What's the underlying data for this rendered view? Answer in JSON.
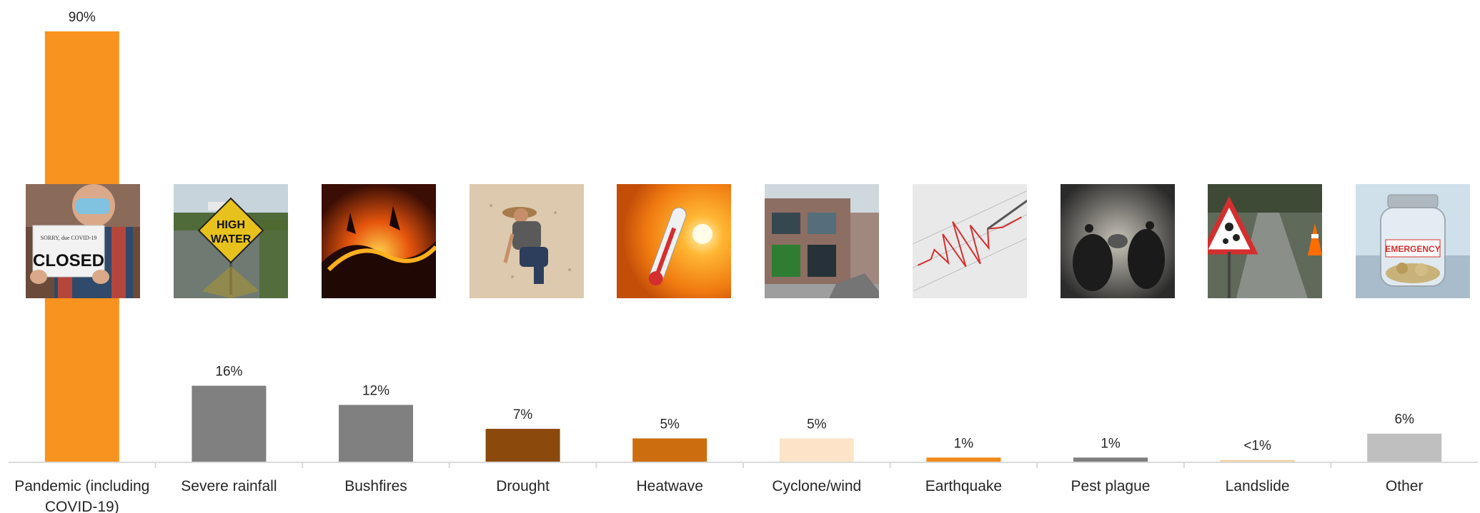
{
  "chart_data": {
    "type": "bar",
    "categories": [
      "Pandemic (including COVID-19)",
      "Severe rainfall",
      "Bushfires",
      "Drought",
      "Heatwave",
      "Cyclone/wind",
      "Earthquake",
      "Pest plague",
      "Landslide",
      "Other"
    ],
    "category_lines": [
      [
        "Pandemic (including",
        "COVID-19)"
      ],
      [
        "Severe rainfall"
      ],
      [
        "Bushfires"
      ],
      [
        "Drought"
      ],
      [
        "Heatwave"
      ],
      [
        "Cyclone/wind"
      ],
      [
        "Earthquake"
      ],
      [
        "Pest plague"
      ],
      [
        "Landslide"
      ],
      [
        "Other"
      ]
    ],
    "values": [
      90,
      16,
      12,
      7,
      5,
      5,
      1,
      1,
      0.5,
      6
    ],
    "value_labels": [
      "90%",
      "16%",
      "12%",
      "7%",
      "5%",
      "5%",
      "1%",
      "1%",
      "<1%",
      "6%"
    ],
    "colors": [
      "#F7931E",
      "#808080",
      "#808080",
      "#8B4A0B",
      "#CC6E0F",
      "#FDE4C8",
      "#F0891C",
      "#7F7F7F",
      "#F3D2A6",
      "#BFBFBF"
    ],
    "title": "",
    "xlabel": "",
    "ylabel": "",
    "ylim": [
      0,
      90
    ],
    "grid": false,
    "legend": "none"
  },
  "photos": [
    {
      "icon": "closed-sign-photo-icon",
      "sign_lines": [
        "SORRY, due COVID-19",
        "CLOSED"
      ]
    },
    {
      "icon": "high-water-sign-photo-icon",
      "sign_lines": [
        "HIGH",
        "WATER"
      ]
    },
    {
      "icon": "bushfire-photo-icon"
    },
    {
      "icon": "drought-farmer-photo-icon"
    },
    {
      "icon": "thermometer-sun-photo-icon"
    },
    {
      "icon": "damaged-building-photo-icon"
    },
    {
      "icon": "seismograph-photo-icon"
    },
    {
      "icon": "mice-plague-photo-icon"
    },
    {
      "icon": "falling-rocks-sign-photo-icon"
    },
    {
      "icon": "emergency-jar-photo-icon",
      "sign_lines": [
        "EMERGENCY"
      ]
    }
  ]
}
